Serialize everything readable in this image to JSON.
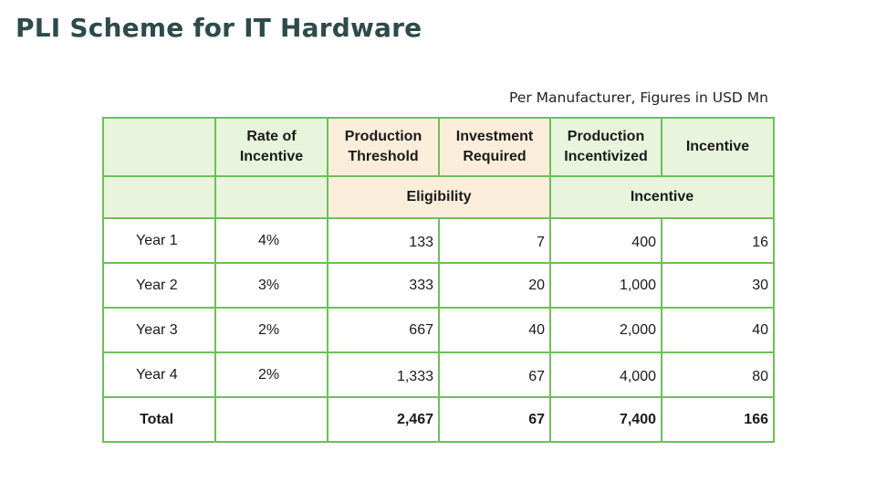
{
  "title": "PLI Scheme for IT Hardware",
  "subtitle": "Per Manufacturer, Figures in USD Mn",
  "table": {
    "headers": [
      "",
      "Rate of Incentive",
      "Production Threshold",
      "Investment Required",
      "Production Incentivized",
      "Incentive"
    ],
    "subheaders": {
      "eligibility": "Eligibility",
      "incentive": "Incentive"
    },
    "rows": [
      {
        "year": "Year 1",
        "rate": "4%",
        "production_threshold": "133",
        "investment_required": "7",
        "production_incentivized": "400",
        "incentive": "16"
      },
      {
        "year": "Year 2",
        "rate": "3%",
        "production_threshold": "333",
        "investment_required": "20",
        "production_incentivized": "1,000",
        "incentive": "30"
      },
      {
        "year": "Year 3",
        "rate": "2%",
        "production_threshold": "667",
        "investment_required": "40",
        "production_incentivized": "2,000",
        "incentive": "40"
      },
      {
        "year": "Year 4",
        "rate": "2%",
        "production_threshold": "1,333",
        "investment_required": "67",
        "production_incentivized": "4,000",
        "incentive": "80"
      }
    ],
    "total": {
      "label": "Total",
      "rate": "",
      "production_threshold": "2,467",
      "investment_required": "67",
      "production_incentivized": "7,400",
      "incentive": "166"
    }
  },
  "colors": {
    "border": "#6dbf5a",
    "header_green": "#e8f4dc",
    "eligibility_beige": "#faeedb",
    "title": "#2e4a4a"
  }
}
